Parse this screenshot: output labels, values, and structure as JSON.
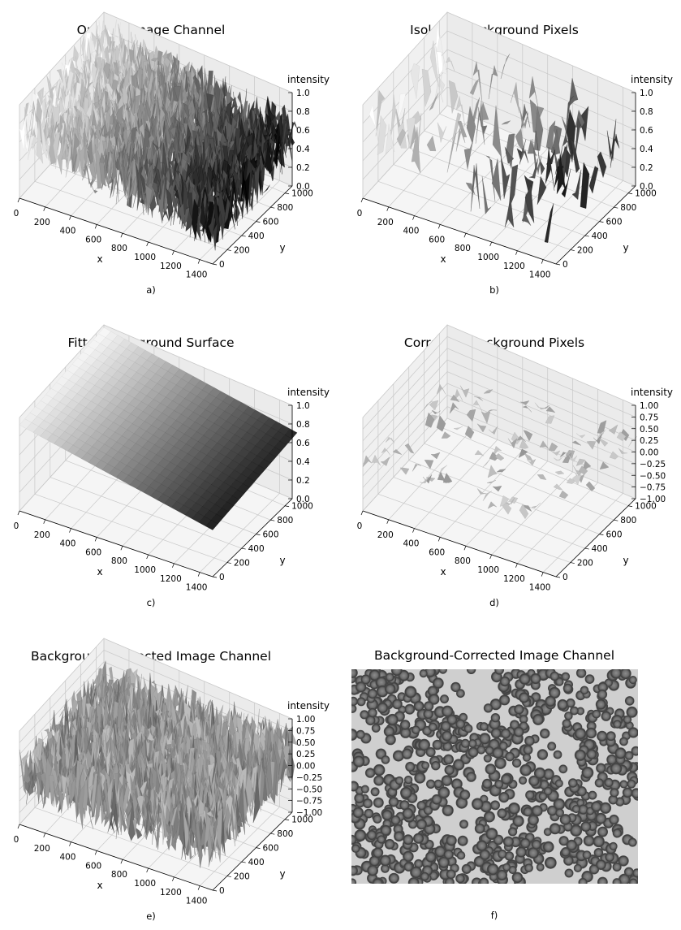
{
  "panels": [
    {
      "id": "a",
      "label": "a)",
      "title": "Original Image Channel",
      "kind": "surface3d",
      "style": "noisy",
      "xlabel": "x",
      "ylabel": "y",
      "zlabel": "intensity",
      "xticks": [
        "0",
        "200",
        "400",
        "600",
        "800",
        "1000",
        "1200",
        "1400"
      ],
      "yticks": [
        "0",
        "200",
        "400",
        "600",
        "800",
        "1000"
      ],
      "zticks": [
        "0.0",
        "0.2",
        "0.4",
        "0.6",
        "0.8",
        "1.0"
      ],
      "xlim": [
        0,
        1500
      ],
      "ylim": [
        0,
        1100
      ],
      "zlim": [
        0,
        1
      ]
    },
    {
      "id": "b",
      "label": "b)",
      "title": "Isolated Background Pixels",
      "kind": "surface3d",
      "style": "sparse",
      "xlabel": "x",
      "ylabel": "y",
      "zlabel": "intensity",
      "xticks": [
        "0",
        "200",
        "400",
        "600",
        "800",
        "1000",
        "1200",
        "1400"
      ],
      "yticks": [
        "0",
        "200",
        "400",
        "600",
        "800",
        "1000"
      ],
      "zticks": [
        "0.0",
        "0.2",
        "0.4",
        "0.6",
        "0.8",
        "1.0"
      ],
      "xlim": [
        0,
        1500
      ],
      "ylim": [
        0,
        1100
      ],
      "zlim": [
        0,
        1
      ]
    },
    {
      "id": "c",
      "label": "c)",
      "title": "Fitted Background Surface",
      "kind": "surface3d",
      "style": "smooth",
      "xlabel": "x",
      "ylabel": "y",
      "zlabel": "intensity",
      "xticks": [
        "0",
        "200",
        "400",
        "600",
        "800",
        "1000",
        "1200",
        "1400"
      ],
      "yticks": [
        "0",
        "200",
        "400",
        "600",
        "800",
        "1000"
      ],
      "zticks": [
        "0.0",
        "0.2",
        "0.4",
        "0.6",
        "0.8",
        "1.0"
      ],
      "xlim": [
        0,
        1500
      ],
      "ylim": [
        0,
        1100
      ],
      "zlim": [
        0,
        1
      ]
    },
    {
      "id": "d",
      "label": "d)",
      "title": "Corrected Background Pixels",
      "kind": "surface3d",
      "style": "sparse-flat",
      "xlabel": "x",
      "ylabel": "y",
      "zlabel": "intensity",
      "xticks": [
        "0",
        "200",
        "400",
        "600",
        "800",
        "1000",
        "1200",
        "1400"
      ],
      "yticks": [
        "0",
        "200",
        "400",
        "600",
        "800",
        "1000"
      ],
      "zticks": [
        "−1.00",
        "−0.75",
        "−0.50",
        "−0.25",
        "0.00",
        "0.25",
        "0.50",
        "0.75",
        "1.00"
      ],
      "xlim": [
        0,
        1500
      ],
      "ylim": [
        0,
        1100
      ],
      "zlim": [
        -1,
        1
      ]
    },
    {
      "id": "e",
      "label": "e)",
      "title": "Background-Corrected Image Channel",
      "kind": "surface3d",
      "style": "noisy-centered",
      "xlabel": "x",
      "ylabel": "y",
      "zlabel": "intensity",
      "xticks": [
        "0",
        "200",
        "400",
        "600",
        "800",
        "1000",
        "1200",
        "1400"
      ],
      "yticks": [
        "0",
        "200",
        "400",
        "600",
        "800",
        "1000"
      ],
      "zticks": [
        "−1.00",
        "−0.75",
        "−0.50",
        "−0.25",
        "0.00",
        "0.25",
        "0.50",
        "0.75",
        "1.00"
      ],
      "xlim": [
        0,
        1500
      ],
      "ylim": [
        0,
        1100
      ],
      "zlim": [
        -1,
        1
      ]
    },
    {
      "id": "f",
      "label": "f)",
      "title": "Background-Corrected Image Channel",
      "kind": "image",
      "colormap": "gray"
    }
  ],
  "chart_data": [
    {
      "type": "surface3d",
      "title": "Original Image Channel",
      "xlabel": "x",
      "ylabel": "y",
      "zlabel": "intensity",
      "xlim": [
        0,
        1500
      ],
      "ylim": [
        0,
        1100
      ],
      "zlim": [
        0,
        1
      ],
      "colormap": "gray"
    },
    {
      "type": "surface3d",
      "title": "Isolated Background Pixels",
      "xlabel": "x",
      "ylabel": "y",
      "zlabel": "intensity",
      "xlim": [
        0,
        1500
      ],
      "ylim": [
        0,
        1100
      ],
      "zlim": [
        0,
        1
      ],
      "colormap": "gray"
    },
    {
      "type": "surface3d",
      "title": "Fitted Background Surface",
      "xlabel": "x",
      "ylabel": "y",
      "zlabel": "intensity",
      "xlim": [
        0,
        1500
      ],
      "ylim": [
        0,
        1100
      ],
      "zlim": [
        0,
        1
      ],
      "colormap": "gray",
      "background_range": [
        0.45,
        1.0
      ]
    },
    {
      "type": "surface3d",
      "title": "Corrected Background Pixels",
      "xlabel": "x",
      "ylabel": "y",
      "zlabel": "intensity",
      "xlim": [
        0,
        1500
      ],
      "ylim": [
        0,
        1100
      ],
      "zlim": [
        -1,
        1
      ],
      "colormap": "gray"
    },
    {
      "type": "surface3d",
      "title": "Background-Corrected Image Channel",
      "xlabel": "x",
      "ylabel": "y",
      "zlabel": "intensity",
      "xlim": [
        0,
        1500
      ],
      "ylim": [
        0,
        1100
      ],
      "zlim": [
        -1,
        1
      ],
      "colormap": "gray"
    },
    {
      "type": "heatmap",
      "title": "Background-Corrected Image Channel",
      "colormap": "gray"
    }
  ]
}
